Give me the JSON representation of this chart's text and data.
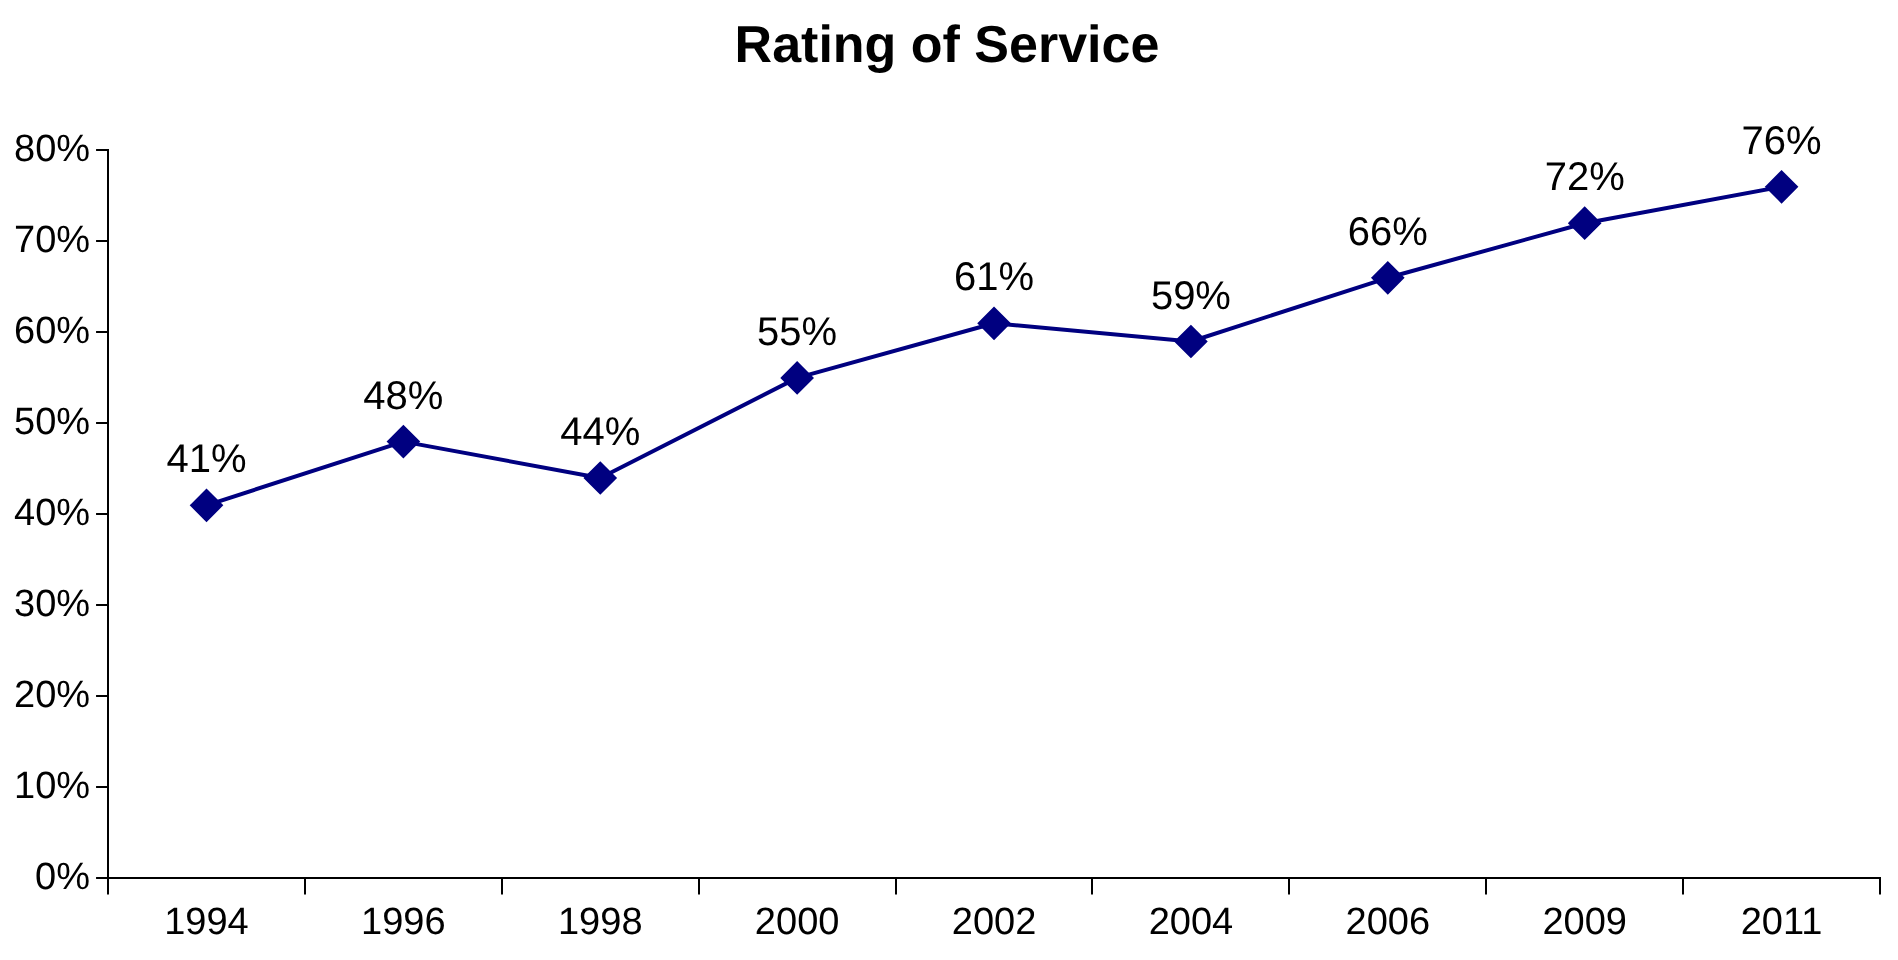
{
  "chart_data": {
    "type": "line",
    "title": "Rating of Service",
    "categories": [
      "1994",
      "1996",
      "1998",
      "2000",
      "2002",
      "2004",
      "2006",
      "2009",
      "2011"
    ],
    "series": [
      {
        "color": "#000080",
        "values": [
          41,
          48,
          44,
          55,
          61,
          59,
          66,
          72,
          76
        ],
        "value_labels": [
          "41%",
          "48%",
          "44%",
          "55%",
          "61%",
          "59%",
          "66%",
          "72%",
          "76%"
        ]
      }
    ],
    "ylim": [
      0,
      80
    ],
    "yticks": [
      {
        "value": 0,
        "label": "0%"
      },
      {
        "value": 10,
        "label": "10%"
      },
      {
        "value": 20,
        "label": "20%"
      },
      {
        "value": 30,
        "label": "30%"
      },
      {
        "value": 40,
        "label": "40%"
      },
      {
        "value": 50,
        "label": "50%"
      },
      {
        "value": 60,
        "label": "60%"
      },
      {
        "value": 70,
        "label": "70%"
      },
      {
        "value": 80,
        "label": "80%"
      }
    ],
    "grid": false,
    "legend": false,
    "marker": "diamond",
    "line_style": "solid"
  }
}
